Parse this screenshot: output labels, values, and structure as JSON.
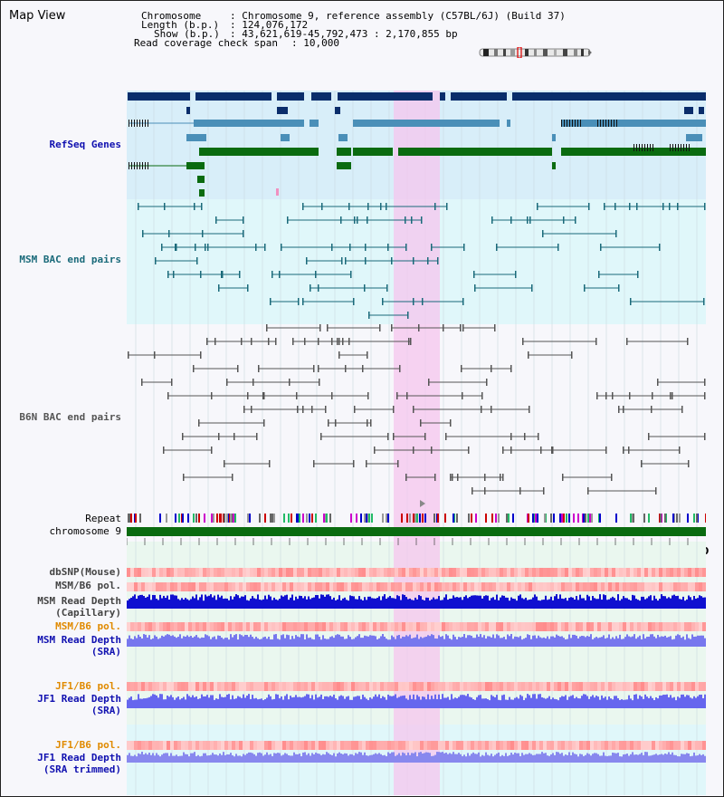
{
  "view": {
    "title": "Map View"
  },
  "header": {
    "chromosome_label": "Chromosome",
    "chromosome_value": ": Chromosome 9, reference assembly (C57BL/6J) (Build 37)",
    "length_label": "Length (b.p.)",
    "length_value": ": 124,076,172",
    "show_label": "Show (b.p.)",
    "show_value": ": 43,621,619-45,792,473 : 2,170,855 bp",
    "coverage_label": "Read coverage check span",
    "coverage_value": ": 10,000"
  },
  "tracks": {
    "refseq": "RefSeq Genes",
    "msm_bac": "MSM BAC end pairs",
    "b6n_bac": "B6N BAC end pairs",
    "repeat": "Repeat",
    "chromosome": "chromosome 9",
    "dbsnp": "dbSNP(Mouse)",
    "msm_b6_pol_1": "MSM/B6 pol.",
    "msm_depth_cap_1": "MSM Read Depth",
    "msm_depth_cap_2": "(Capillary)",
    "msm_b6_pol_2": "MSM/B6 pol.",
    "msm_depth_sra_1": "MSM Read Depth",
    "msm_depth_sra_2": "(SRA)",
    "jf1_b6_pol_1": "JF1/B6 pol.",
    "jf1_depth_sra_1": "JF1 Read Depth",
    "jf1_depth_sra_2": "(SRA)",
    "jf1_b6_pol_2": "JF1/B6 pol.",
    "jf1_depth_trim_1": "JF1 Read Depth",
    "jf1_depth_trim_2": "(SRA trimmed)"
  },
  "axis": {
    "ticks": [
      "44000000",
      "44400000",
      "44800000",
      "45200000",
      "45600000"
    ]
  },
  "colors": {
    "refseq_dark": "#0a2d6b",
    "refseq_mid": "#4a8fb8",
    "refseq_green": "#0a6b10",
    "msm_bac": "#1a6a7a",
    "b6n_bac": "#555555",
    "highlight": "#f6c6ee",
    "label_blue": "#1010b0",
    "label_teal": "#1a6a7a",
    "label_orange": "#e08a00"
  }
}
